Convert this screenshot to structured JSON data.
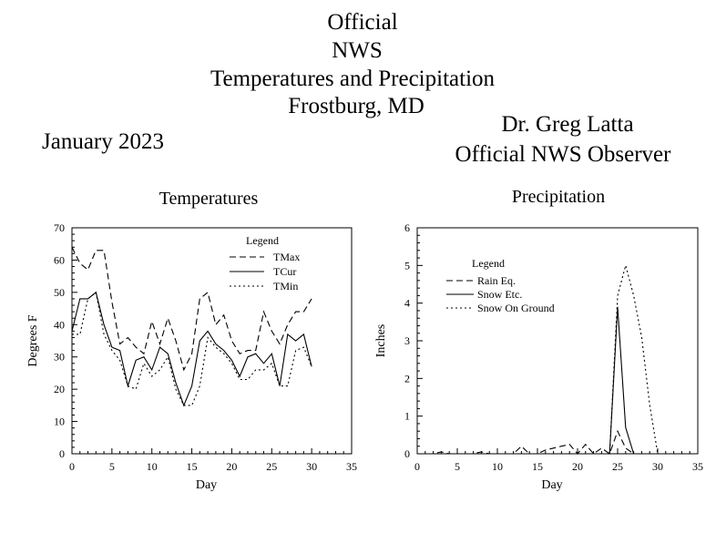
{
  "header": {
    "title_lines": [
      "Official",
      "NWS",
      "Temperatures and Precipitation",
      "Frostburg, MD"
    ],
    "month": "January 2023",
    "observer_name": "Dr. Greg Latta",
    "observer_role": "Official NWS Observer"
  },
  "chart_data": [
    {
      "type": "line",
      "title": "Temperatures",
      "xlabel": "Day",
      "ylabel": "Degrees F",
      "xlim": [
        0,
        35
      ],
      "ylim": [
        0,
        70
      ],
      "xticks": [
        0,
        5,
        10,
        15,
        20,
        25,
        30,
        35
      ],
      "yticks": [
        0,
        10,
        20,
        30,
        40,
        50,
        60,
        70
      ],
      "legend": {
        "title": "Legend",
        "placement": "top-right"
      },
      "x": [
        0,
        1,
        2,
        3,
        4,
        5,
        6,
        7,
        8,
        9,
        10,
        11,
        12,
        13,
        14,
        15,
        16,
        17,
        18,
        19,
        20,
        21,
        22,
        23,
        24,
        25,
        26,
        27,
        28,
        29,
        30
      ],
      "series": [
        {
          "name": "TMax",
          "style": "dashed",
          "values": [
            64,
            59,
            57,
            63,
            63,
            47,
            34,
            36,
            33,
            31,
            41,
            34,
            42,
            35,
            26,
            31,
            48,
            50,
            40,
            43,
            35,
            31,
            32,
            32,
            44,
            38,
            34,
            40,
            44,
            44,
            48
          ]
        },
        {
          "name": "TCur",
          "style": "solid",
          "values": [
            38,
            48,
            48,
            50,
            40,
            33,
            32,
            21,
            29,
            30,
            26,
            33,
            31,
            22,
            15,
            21,
            35,
            38,
            34,
            32,
            29,
            24,
            30,
            31,
            28,
            31,
            21,
            37,
            35,
            37,
            27
          ]
        },
        {
          "name": "TMin",
          "style": "dotted",
          "values": [
            37,
            37,
            48,
            50,
            37,
            32,
            29,
            21,
            20,
            28,
            24,
            26,
            30,
            20,
            15,
            15,
            21,
            36,
            33,
            31,
            28,
            23,
            23,
            26,
            26,
            28,
            21,
            21,
            32,
            33,
            27
          ]
        }
      ]
    },
    {
      "type": "line",
      "title": "Precipitation",
      "xlabel": "Day",
      "ylabel": "Inches",
      "xlim": [
        0,
        35
      ],
      "ylim": [
        0,
        6
      ],
      "xticks": [
        0,
        5,
        10,
        15,
        20,
        25,
        30,
        35
      ],
      "yticks": [
        0,
        1,
        2,
        3,
        4,
        5,
        6
      ],
      "legend": {
        "title": "Legend",
        "placement": "top-left"
      },
      "x": [
        0,
        1,
        2,
        3,
        4,
        5,
        6,
        7,
        8,
        9,
        10,
        11,
        12,
        13,
        14,
        15,
        16,
        17,
        18,
        19,
        20,
        21,
        22,
        23,
        24,
        25,
        26,
        27,
        28,
        29,
        30
      ],
      "series": [
        {
          "name": "Rain Eq.",
          "style": "dashed",
          "values": [
            0,
            0,
            0,
            0.05,
            0,
            0,
            0,
            0,
            0.05,
            0,
            0,
            0,
            0,
            0.2,
            0,
            0,
            0.1,
            0.15,
            0.2,
            0.25,
            0,
            0.25,
            0,
            0.15,
            0,
            0.6,
            0.15,
            0,
            0,
            0,
            0
          ]
        },
        {
          "name": "Snow Etc.",
          "style": "solid",
          "values": [
            0,
            0,
            0,
            0,
            0,
            0,
            0,
            0,
            0,
            0,
            0,
            0,
            0,
            0,
            0,
            0,
            0,
            0,
            0,
            0,
            0,
            0,
            0,
            0,
            0,
            3.9,
            0.7,
            0,
            0,
            0,
            0
          ]
        },
        {
          "name": "Snow On Ground",
          "style": "dotted",
          "values": [
            0,
            0,
            0,
            0,
            0,
            0,
            0,
            0,
            0,
            0,
            0,
            0,
            0,
            0,
            0,
            0,
            0,
            0,
            0,
            0,
            0,
            0,
            0,
            0,
            0,
            4.2,
            5.0,
            4.2,
            3.1,
            1.3,
            0
          ]
        }
      ]
    }
  ]
}
